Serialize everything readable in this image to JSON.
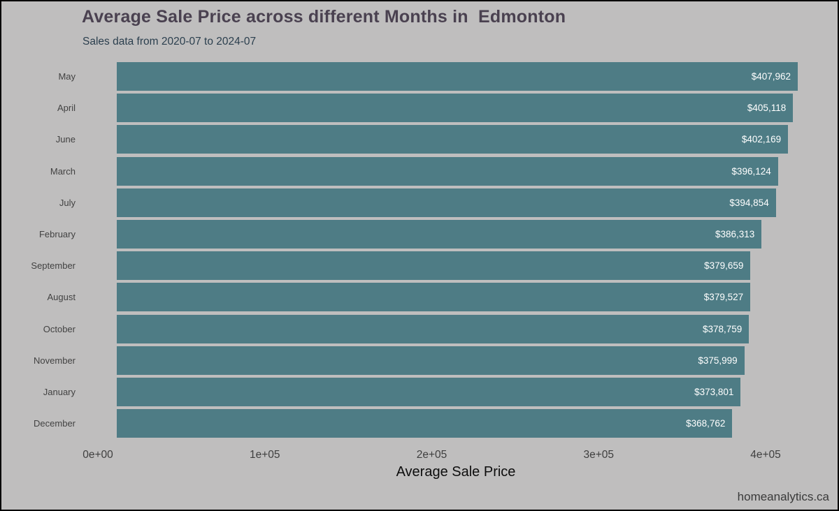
{
  "header": {
    "title": "Average Sale Price across different Months in  Edmonton",
    "subtitle": "Sales data from 2020-07 to 2024-07"
  },
  "footer": {
    "brand": "homeanalytics.ca"
  },
  "chart_data": {
    "type": "bar",
    "orientation": "horizontal",
    "title": "Average Sale Price across different Months in  Edmonton",
    "subtitle": "Sales data from 2020-07 to 2024-07",
    "xlabel": "Average Sale Price",
    "ylabel": "",
    "categories": [
      "May",
      "April",
      "June",
      "March",
      "July",
      "February",
      "September",
      "August",
      "October",
      "November",
      "January",
      "December"
    ],
    "values": [
      407962,
      405118,
      402169,
      396124,
      394854,
      386313,
      379659,
      379527,
      378759,
      375999,
      373801,
      368762
    ],
    "value_labels": [
      "$407,962",
      "$405,118",
      "$402,169",
      "$396,124",
      "$394,854",
      "$386,313",
      "$379,659",
      "$379,527",
      "$378,759",
      "$375,999",
      "$373,801",
      "$368,762"
    ],
    "x_ticks": [
      {
        "label": "0e+00",
        "value": 0
      },
      {
        "label": "1e+05",
        "value": 100000
      },
      {
        "label": "2e+05",
        "value": 200000
      },
      {
        "label": "3e+05",
        "value": 300000
      },
      {
        "label": "4e+05",
        "value": 400000
      }
    ],
    "xlim": [
      0,
      433500
    ],
    "grid": false,
    "legend": false,
    "colors": {
      "bar": "#4e7c85",
      "background": "#bfbebe",
      "bar_value_text": "#ffffff",
      "category_text": "#424242",
      "tick_text": "#3f3f3f",
      "title_text": "#4a4150",
      "subtitle_text": "#2b3f4e",
      "axis_title_text": "#0d0d0d",
      "border": "#000000"
    }
  }
}
